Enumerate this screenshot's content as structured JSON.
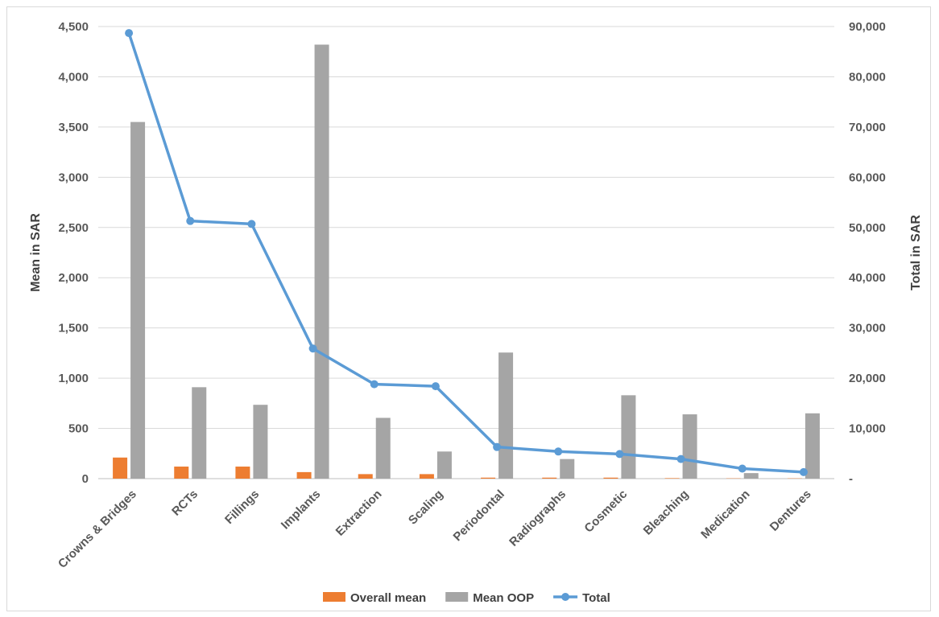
{
  "chart_data": {
    "type": "bar",
    "categories": [
      "Crowns & Bridges",
      "RCTs",
      "Fillings",
      "Implants",
      "Extraction",
      "Scaling",
      "Periodontal",
      "Radiographs",
      "Cosmetic",
      "Bleaching",
      "Medication",
      "Dentures"
    ],
    "series": [
      {
        "name": "Overall mean",
        "type": "bar",
        "axis": "left",
        "color": "#ed7d31",
        "values": [
          210,
          120,
          120,
          65,
          45,
          45,
          10,
          10,
          10,
          5,
          3,
          3
        ]
      },
      {
        "name": "Mean OOP",
        "type": "bar",
        "axis": "left",
        "color": "#a5a5a5",
        "values": [
          3550,
          910,
          735,
          4320,
          605,
          270,
          1255,
          195,
          830,
          640,
          55,
          650
        ]
      },
      {
        "name": "Total",
        "type": "line",
        "axis": "right",
        "color": "#5b9bd5",
        "values": [
          88700,
          51300,
          50700,
          25900,
          18800,
          18400,
          6300,
          5400,
          4900,
          3900,
          2000,
          1300
        ]
      }
    ],
    "ylabel": "Mean in SAR",
    "y2label": "Total in SAR",
    "ylim": [
      0,
      4500
    ],
    "y2lim": [
      0,
      90000
    ],
    "yticks": [
      "0",
      "500",
      "1,000",
      "1,500",
      "2,000",
      "2,500",
      "3,000",
      "3,500",
      "4,000",
      "4,500"
    ],
    "y2ticks": [
      "-",
      "10,000",
      "20,000",
      "30,000",
      "40,000",
      "50,000",
      "60,000",
      "70,000",
      "80,000",
      "90,000"
    ],
    "grid": true,
    "legend": "bottom"
  }
}
